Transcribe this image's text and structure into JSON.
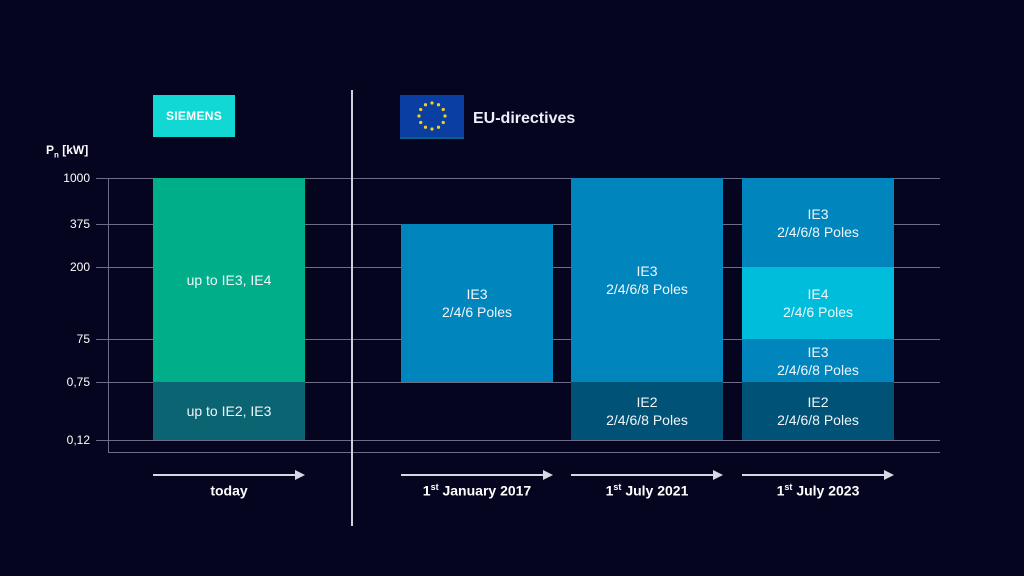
{
  "brand": {
    "siemens_logo": "SIEMENS",
    "eu_label": "EU-directives",
    "eu_flag_icon": "eu-flag-icon"
  },
  "y_axis": {
    "label_main": "P",
    "label_sub": "n",
    "label_unit": " [kW]",
    "ticks": [
      "0,12",
      "0,75",
      "75",
      "200",
      "375",
      "1000"
    ]
  },
  "colors": {
    "green": "#00af8a",
    "dark_teal": "#0b6472",
    "blue": "#0085bd",
    "dark_blue": "#005276",
    "cyan": "#00bedb"
  },
  "columns": [
    {
      "id": "today",
      "label_pre": "",
      "label_sup": "",
      "label_post": "today",
      "segments": [
        {
          "from": "0,12",
          "to": "0,75",
          "lines": [
            "up to IE2, IE3"
          ],
          "color": "dark_teal"
        },
        {
          "from": "0,75",
          "to": "1000",
          "lines": [
            "up to IE3, IE4"
          ],
          "color": "green"
        }
      ]
    },
    {
      "id": "jan2017",
      "label_pre": "1",
      "label_sup": "st",
      "label_post": " January 2017",
      "segments": [
        {
          "from": "0,75",
          "to": "375",
          "lines": [
            "IE3",
            "2/4/6 Poles"
          ],
          "color": "blue"
        }
      ]
    },
    {
      "id": "jul2021",
      "label_pre": "1",
      "label_sup": "st",
      "label_post": " July 2021",
      "segments": [
        {
          "from": "0,12",
          "to": "0,75",
          "lines": [
            "IE2",
            "2/4/6/8 Poles"
          ],
          "color": "dark_blue"
        },
        {
          "from": "0,75",
          "to": "1000",
          "lines": [
            "IE3",
            "2/4/6/8 Poles"
          ],
          "color": "blue"
        }
      ]
    },
    {
      "id": "jul2023",
      "label_pre": "1",
      "label_sup": "st",
      "label_post": " July 2023",
      "segments": [
        {
          "from": "0,12",
          "to": "0,75",
          "lines": [
            "IE2",
            "2/4/6/8 Poles"
          ],
          "color": "dark_blue"
        },
        {
          "from": "0,75",
          "to": "75",
          "lines": [
            "IE3",
            "2/4/6/8 Poles"
          ],
          "color": "blue"
        },
        {
          "from": "75",
          "to": "200",
          "lines": [
            "IE4",
            "2/4/6 Poles"
          ],
          "color": "cyan"
        },
        {
          "from": "200",
          "to": "1000",
          "lines": [
            "IE3",
            "2/4/6/8 Poles"
          ],
          "color": "blue"
        }
      ]
    }
  ]
}
